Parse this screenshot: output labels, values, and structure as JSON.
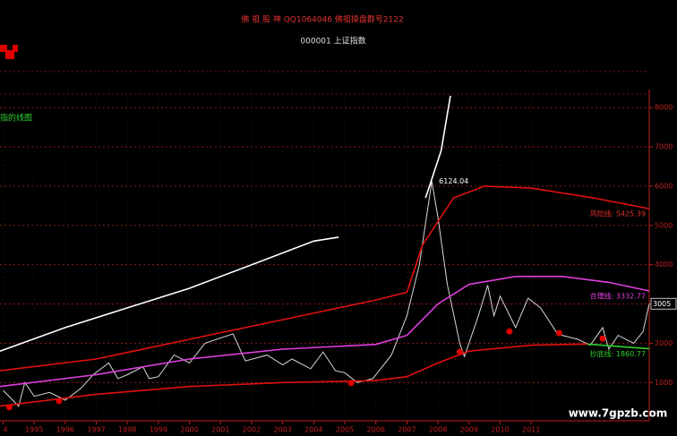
{
  "chart_data": {
    "type": "line",
    "header": "佛 祖 股 神    QQ1064046 佛祖操盘群号2122",
    "symbol": "000001 上证指数",
    "side_note": "指的线图",
    "watermark": "www.7gpzb.com",
    "xlim": [
      1993.9,
      2014.8
    ],
    "xticks": [
      {
        "value": 1994,
        "label": "4"
      },
      1995,
      1996,
      1997,
      1998,
      1999,
      2000,
      2001,
      2002,
      2003,
      2004,
      2005,
      2006,
      2007,
      2008,
      2009,
      2010,
      2011
    ],
    "ylim": [
      300,
      8300
    ],
    "yticks": [
      1000,
      2000,
      3000,
      4000,
      5000,
      6000,
      7000,
      8000
    ],
    "grid": true,
    "last_price": 3005,
    "series": [
      {
        "color": "#d8d8d8",
        "x": [
          1994.0,
          1994.5,
          1994.7,
          1995.0,
          1995.5,
          1996.0,
          1996.5,
          1996.9,
          1997.4,
          1997.7,
          1998.0,
          1998.5,
          1998.7,
          1999.0,
          1999.5,
          2000.0,
          2000.5,
          2001.4,
          2001.8,
          2002.5,
          2003.0,
          2003.3,
          2003.9,
          2004.3,
          2004.7,
          2005.0,
          2005.4,
          2005.9,
          2006.5,
          2007.0,
          2007.4,
          2007.8,
          2008.0,
          2008.3,
          2008.7,
          2008.85,
          2009.3,
          2009.6,
          2009.8,
          2010.0,
          2010.5,
          2010.9,
          2011.3,
          2011.8,
          2012.0,
          2012.5,
          2012.9,
          2013.3,
          2013.5,
          2013.8,
          2014.3,
          2014.6,
          2014.8
        ],
        "values": [
          800,
          400,
          1000,
          650,
          750,
          550,
          850,
          1200,
          1500,
          1100,
          1200,
          1400,
          1100,
          1150,
          1700,
          1500,
          2000,
          2240,
          1550,
          1700,
          1450,
          1600,
          1350,
          1780,
          1300,
          1250,
          1000,
          1100,
          1700,
          2700,
          4000,
          6124,
          5200,
          3500,
          2000,
          1664,
          2700,
          3478,
          2700,
          3200,
          2400,
          3150,
          2900,
          2300,
          2200,
          2100,
          1950,
          2400,
          1850,
          2200,
          2000,
          2300,
          3005
        ]
      },
      {
        "color": "#e01010",
        "x": [
          1993.9,
          1997,
          2000,
          2003,
          2006,
          2007.0,
          2007.5,
          2008.5,
          2009.5,
          2011,
          2013,
          2014.8
        ],
        "values": [
          1300,
          1600,
          2100,
          2600,
          3100,
          3300,
          4500,
          5700,
          6000,
          5950,
          5700,
          5425
        ]
      },
      {
        "color": "#e040e0",
        "x": [
          1993.9,
          1997,
          2000,
          2003,
          2006,
          2007.0,
          2008.0,
          2009,
          2010.5,
          2012,
          2013.5,
          2014.8
        ],
        "values": [
          900,
          1200,
          1600,
          1850,
          1970,
          2200,
          3000,
          3500,
          3700,
          3700,
          3550,
          3332
        ]
      },
      {
        "color": "#e01010",
        "x": [
          1993.9,
          1997,
          2000,
          2003,
          2006,
          2007,
          2008,
          2009,
          2011,
          2012.8
        ],
        "values": [
          400,
          700,
          900,
          1000,
          1050,
          1150,
          1500,
          1800,
          1950,
          1980
        ]
      },
      {
        "color": "#30d030",
        "x": [
          2012.8,
          2014.8
        ],
        "values": [
          1980,
          1860
        ]
      },
      {
        "color": "#ffffff",
        "x": [
          1993.9,
          1996,
          1998,
          2000,
          2002,
          2004,
          2004.8,
          2006,
          2007.6,
          2008.1,
          2008.4
        ],
        "values": [
          1800,
          2400,
          2900,
          3400,
          4000,
          4600,
          4700,
          null,
          5700,
          6900,
          8300
        ]
      }
    ],
    "signals": {
      "color": "#e00000",
      "x": [
        1994.2,
        1995.8,
        2005.2,
        2008.7,
        2010.3,
        2011.9,
        2013.3
      ],
      "values": [
        370,
        530,
        990,
        1780,
        2300,
        2260,
        2120
      ]
    },
    "annotations": [
      {
        "text": "6124.04",
        "x": 2007.8,
        "y": 6124,
        "color": "#ffffff"
      },
      {
        "text": "风险线: 5425.39",
        "x": 2014.8,
        "y": 5425,
        "color": "#e03030"
      },
      {
        "text": "合理线: 3332.77",
        "x": 2014.8,
        "y": 3332,
        "color": "#e040e0"
      },
      {
        "text": "抄底线: 1860.77",
        "x": 2014.8,
        "y": 1860,
        "color": "#30d030"
      }
    ]
  }
}
